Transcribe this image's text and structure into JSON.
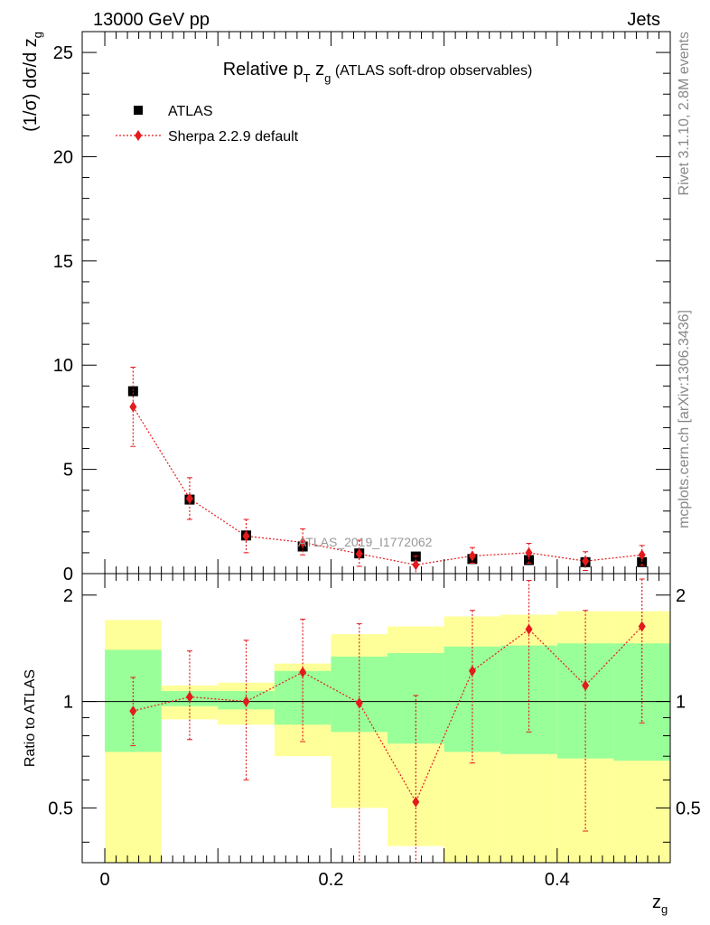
{
  "header": {
    "energy": "13000 GeV pp",
    "category": "Jets",
    "title_prefix": "Relative p",
    "title_sub_T": "T",
    "title_var": " z",
    "title_sub_g": "g",
    "title_suffix": " (ATLAS soft-drop observables)",
    "side_top": "Rivet 3.1.10,  2.8M events",
    "side_bottom": "mcplots.cern.ch [arXiv:1306.3436]",
    "watermark": "ATLAS_2019_I1772062"
  },
  "legend": {
    "data_label": "ATLAS",
    "mc_label": "Sherpa 2.2.9 default"
  },
  "colors": {
    "data": "#000000",
    "mc": "#e41a1c",
    "band_stat": "#99ff99",
    "band_total": "#ffff99",
    "axis": "#000000",
    "side_text": "#888888"
  },
  "chart_data": [
    {
      "type": "scatter",
      "panel": "main",
      "ylabel": "(1/σ) dσ/d z_g",
      "ylabel_main": "(1/σ) dσ/d z",
      "ylabel_sub": "g",
      "xlim": [
        -0.02,
        0.5
      ],
      "ylim": [
        0,
        26
      ],
      "yticks": [
        0,
        5,
        10,
        15,
        20,
        25
      ],
      "ytick_labels": [
        "0",
        "5",
        "10",
        "15",
        "20",
        "25"
      ],
      "x": [
        0.025,
        0.075,
        0.125,
        0.175,
        0.225,
        0.275,
        0.325,
        0.375,
        0.425,
        0.475
      ],
      "series": [
        {
          "name": "ATLAS",
          "values": [
            8.75,
            3.55,
            1.83,
            1.3,
            0.97,
            0.82,
            0.7,
            0.65,
            0.55,
            0.55
          ],
          "marker": "square"
        },
        {
          "name": "Sherpa 2.2.9 default",
          "values": [
            8.0,
            3.6,
            1.8,
            1.5,
            0.95,
            0.42,
            0.85,
            1.0,
            0.6,
            0.9
          ],
          "err_low": [
            6.1,
            2.6,
            1.0,
            0.9,
            0.35,
            0.0,
            0.5,
            0.5,
            0.15,
            0.4
          ],
          "err_high": [
            9.9,
            4.6,
            2.6,
            2.15,
            1.6,
            0.85,
            1.25,
            1.45,
            1.05,
            1.35
          ],
          "marker": "diamond"
        }
      ]
    },
    {
      "type": "scatter",
      "panel": "ratio",
      "xlabel": "z_g",
      "xlabel_main": "z",
      "xlabel_sub": "g",
      "ylabel": "Ratio to ATLAS",
      "xlim": [
        -0.02,
        0.5
      ],
      "ylim": [
        0.35,
        2.3
      ],
      "yticks": [
        0.5,
        1,
        2
      ],
      "ytick_labels": [
        "0.5",
        "1",
        "2"
      ],
      "xticks": [
        0,
        0.2,
        0.4
      ],
      "xtick_labels": [
        "0",
        "0.2",
        "0.4"
      ],
      "bins": [
        [
          0.0,
          0.05
        ],
        [
          0.05,
          0.1
        ],
        [
          0.1,
          0.15
        ],
        [
          0.15,
          0.2
        ],
        [
          0.2,
          0.25
        ],
        [
          0.25,
          0.3
        ],
        [
          0.3,
          0.35
        ],
        [
          0.35,
          0.4
        ],
        [
          0.4,
          0.45
        ],
        [
          0.45,
          0.5
        ]
      ],
      "band_stat_low": [
        0.72,
        0.97,
        0.95,
        0.86,
        0.82,
        0.76,
        0.72,
        0.71,
        0.69,
        0.68
      ],
      "band_stat_high": [
        1.4,
        1.07,
        1.07,
        1.22,
        1.34,
        1.37,
        1.43,
        1.44,
        1.46,
        1.46
      ],
      "band_total_low": [
        0.35,
        0.89,
        0.86,
        0.7,
        0.5,
        0.39,
        0.35,
        0.35,
        0.35,
        0.35
      ],
      "band_total_high": [
        1.7,
        1.11,
        1.13,
        1.28,
        1.55,
        1.63,
        1.74,
        1.76,
        1.8,
        1.8
      ],
      "x": [
        0.025,
        0.075,
        0.125,
        0.175,
        0.225,
        0.275,
        0.325,
        0.375,
        0.425,
        0.475
      ],
      "ratio": [
        0.94,
        1.03,
        1.0,
        1.21,
        0.99,
        0.52,
        1.22,
        1.6,
        1.11,
        1.63
      ],
      "ratio_err_low": [
        0.75,
        0.78,
        0.6,
        0.77,
        0.25,
        0.35,
        0.67,
        0.82,
        0.43,
        0.87
      ],
      "ratio_err_high": [
        1.17,
        1.39,
        1.49,
        1.71,
        1.66,
        1.04,
        1.81,
        2.2,
        1.81,
        2.22
      ]
    }
  ]
}
